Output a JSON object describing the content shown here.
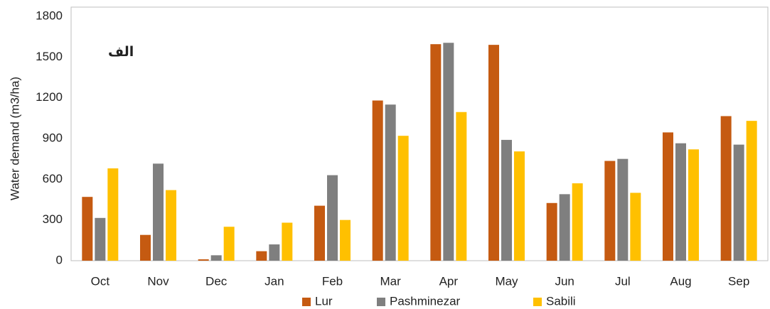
{
  "chart_data": {
    "type": "bar",
    "annotation": "الف",
    "y_label": "Water demand  (m3/ha)",
    "categories": [
      "Oct",
      "Nov",
      "Dec",
      "Jan",
      "Feb",
      "Mar",
      "Apr",
      "May",
      "Jun",
      "Jul",
      "Aug",
      "Sep"
    ],
    "series": [
      {
        "name": "Lur",
        "color": "#c55a11",
        "values": [
          470,
          190,
          10,
          70,
          405,
          1180,
          1595,
          1590,
          425,
          735,
          945,
          1065
        ]
      },
      {
        "name": "Pashminezar",
        "color": "#7f7f7f",
        "values": [
          315,
          715,
          40,
          120,
          630,
          1150,
          1605,
          890,
          490,
          750,
          865,
          855
        ]
      },
      {
        "name": "Sabili",
        "color": "#ffc000",
        "values": [
          680,
          520,
          250,
          280,
          300,
          920,
          1095,
          805,
          570,
          500,
          820,
          1030
        ]
      }
    ],
    "ylim": [
      0,
      1800
    ],
    "yticks": [
      0,
      300,
      600,
      900,
      1200,
      1500,
      1800
    ],
    "grid": false,
    "legend": "bottom"
  }
}
